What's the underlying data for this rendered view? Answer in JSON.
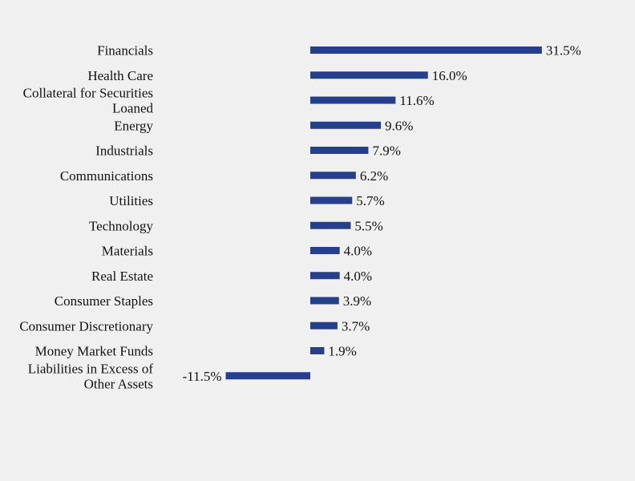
{
  "chart_data": {
    "type": "bar",
    "orientation": "horizontal",
    "categories": [
      [
        "Financials"
      ],
      [
        "Health Care"
      ],
      [
        "Collateral for Securities",
        "Loaned"
      ],
      [
        "Energy"
      ],
      [
        "Industrials"
      ],
      [
        "Communications"
      ],
      [
        "Utilities"
      ],
      [
        "Technology"
      ],
      [
        "Materials"
      ],
      [
        "Real Estate"
      ],
      [
        "Consumer Staples"
      ],
      [
        "Consumer Discretionary"
      ],
      [
        "Money Market Funds"
      ],
      [
        "Liabilities in Excess of",
        "Other Assets"
      ]
    ],
    "values": [
      31.5,
      16.0,
      11.6,
      9.6,
      7.9,
      6.2,
      5.7,
      5.5,
      4.0,
      4.0,
      3.9,
      3.7,
      1.9,
      -11.5
    ],
    "data_labels": [
      "31.5%",
      "16.0%",
      "11.6%",
      "9.6%",
      "7.9%",
      "6.2%",
      "5.7%",
      "5.5%",
      "4.0%",
      "4.0%",
      "3.9%",
      "3.7%",
      "1.9%",
      "-11.5%"
    ],
    "unit": "%",
    "bar_color": "#253f8a",
    "background": "#f0f0f0",
    "grid": false,
    "legend": "none"
  }
}
